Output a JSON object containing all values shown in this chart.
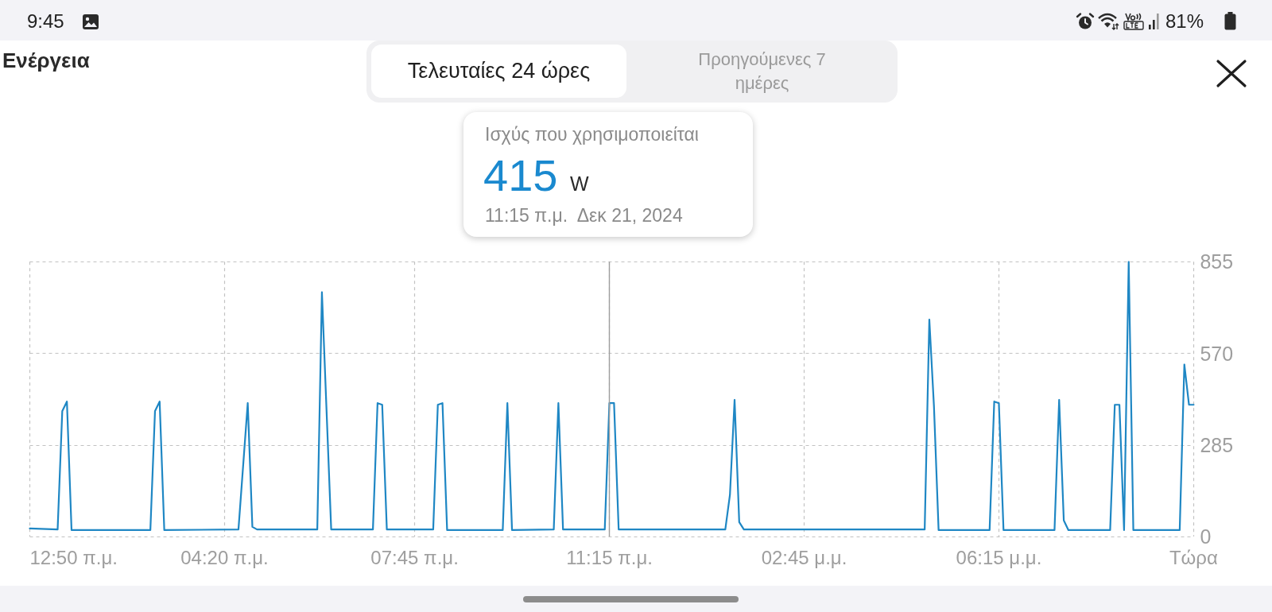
{
  "chart_data": {
    "type": "line",
    "title": "Ενέργεια",
    "annotations": [
      "9:45",
      "81%",
      "Τελευταίες 24 ώρες",
      "Προηγούμενες 7 ημέρες",
      "Ισχύς που χρησιμοποιείται\n415 W\n11:15 π.μ.  Δεκ 21, 2024"
    ],
    "x": [
      "2024-12-21T00:50",
      "2024-12-21T01:20",
      "2024-12-21T01:25",
      "2024-12-21T01:30",
      "2024-12-21T01:35",
      "2024-12-21T03:00",
      "2024-12-21T03:05",
      "2024-12-21T03:10",
      "2024-12-21T03:15",
      "2024-12-21T04:35",
      "2024-12-21T04:45",
      "2024-12-21T04:50",
      "2024-12-21T04:55",
      "2024-12-21T06:00",
      "2024-12-21T06:05",
      "2024-12-21T06:15",
      "2024-12-21T07:00",
      "2024-12-21T07:05",
      "2024-12-21T07:10",
      "2024-12-21T07:15",
      "2024-12-21T08:05",
      "2024-12-21T08:10",
      "2024-12-21T08:15",
      "2024-12-21T08:20",
      "2024-12-21T09:20",
      "2024-12-21T09:25",
      "2024-12-21T09:30",
      "2024-12-21T10:15",
      "2024-12-21T10:20",
      "2024-12-21T10:25",
      "2024-12-21T11:10",
      "2024-12-21T11:15",
      "2024-12-21T11:20",
      "2024-12-21T11:25",
      "2024-12-21T13:20",
      "2024-12-21T13:25",
      "2024-12-21T13:30",
      "2024-12-21T13:35",
      "2024-12-21T13:40",
      "2024-12-21T16:55",
      "2024-12-21T17:00",
      "2024-12-21T17:05",
      "2024-12-21T17:10",
      "2024-12-21T18:05",
      "2024-12-21T18:10",
      "2024-12-21T18:15",
      "2024-12-21T18:20",
      "2024-12-21T19:15",
      "2024-12-21T19:20",
      "2024-12-21T19:25",
      "2024-12-21T19:30",
      "2024-12-21T20:15",
      "2024-12-21T20:20",
      "2024-12-21T20:25",
      "2024-12-21T20:30",
      "2024-12-21T20:35",
      "2024-12-21T20:40",
      "2024-12-21T21:30",
      "2024-12-21T21:35",
      "2024-12-21T21:40",
      "2024-12-21T21:45"
    ],
    "values": [
      25,
      22,
      390,
      420,
      20,
      20,
      390,
      420,
      20,
      22,
      415,
      30,
      22,
      22,
      760,
      22,
      22,
      415,
      410,
      22,
      22,
      410,
      415,
      20,
      20,
      415,
      20,
      22,
      415,
      22,
      22,
      415,
      415,
      22,
      22,
      130,
      425,
      45,
      22,
      22,
      675,
      405,
      20,
      20,
      420,
      415,
      20,
      20,
      425,
      50,
      20,
      20,
      410,
      410,
      20,
      855,
      20,
      20,
      535,
      410,
      410
    ],
    "color": "#1f87c4",
    "xlim": [
      "2024-12-21T00:50",
      "2024-12-21T21:45"
    ],
    "xticks": [
      {
        "value": "2024-12-21T00:50",
        "label": "12:50 π.μ."
      },
      {
        "value": "2024-12-21T04:20",
        "label": "04:20 π.μ."
      },
      {
        "value": "2024-12-21T07:45",
        "label": "07:45 π.μ."
      },
      {
        "value": "2024-12-21T11:15",
        "label": "11:15 π.μ."
      },
      {
        "value": "2024-12-21T14:45",
        "label": "02:45 μ.μ."
      },
      {
        "value": "2024-12-21T18:15",
        "label": "06:15 μ.μ."
      },
      {
        "value": "2024-12-21T21:45",
        "label": "Τώρα"
      }
    ],
    "ylim": [
      0,
      855
    ],
    "yticks": [
      0,
      285,
      570,
      855
    ],
    "grid": true,
    "ref_lines": [
      {
        "axis": "x",
        "value": "2024-12-21T11:15",
        "color": "#9e9e9e",
        "line_style": "solid"
      }
    ]
  }
}
